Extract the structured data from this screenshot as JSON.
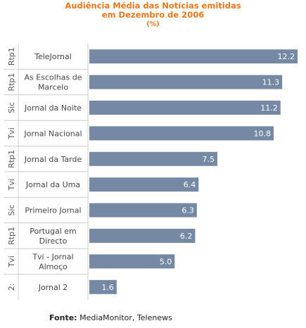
{
  "header": {
    "title_line1": "Audiência Média das Notícias emitidas",
    "title_line2": "em Dezembro de 2006",
    "unit": "(%)"
  },
  "footer": {
    "label": "Fonte:",
    "sources": "MediaMonitor, Telenews"
  },
  "colors": {
    "bar": "#7589a5",
    "title": "#e8761c",
    "grid": "#cccccc"
  },
  "chart_data": {
    "type": "bar",
    "orientation": "horizontal",
    "title": "Audiência Média das Notícias emitidas em Dezembro de 2006",
    "subtitle": "(%)",
    "categories": [
      {
        "channel": "Rtp1",
        "lines": [
          "TeleJornal"
        ]
      },
      {
        "channel": "Rtp1",
        "lines": [
          "As Escolhas de",
          "Marcelo"
        ]
      },
      {
        "channel": "Sic",
        "lines": [
          "Jornal da Noite"
        ]
      },
      {
        "channel": "Tvi",
        "lines": [
          "Jornal Nacional"
        ]
      },
      {
        "channel": "Rtp1",
        "lines": [
          "Jornal da Tarde"
        ]
      },
      {
        "channel": "Tvi",
        "lines": [
          "Jornal da Uma"
        ]
      },
      {
        "channel": "Sic",
        "lines": [
          "Primeiro Jornal"
        ]
      },
      {
        "channel": "Rtp1",
        "lines": [
          "Portugal em",
          "Directo"
        ]
      },
      {
        "channel": "Tvi",
        "lines": [
          "Tvi - Jornal",
          "Almoço"
        ]
      },
      {
        "channel": "2:",
        "lines": [
          "Jornal 2"
        ]
      }
    ],
    "values": [
      12.2,
      11.3,
      11.2,
      10.8,
      7.5,
      6.4,
      6.3,
      6.2,
      5.0,
      1.6
    ],
    "value_labels": [
      "12.2",
      "11.3",
      "11.2",
      "10.8",
      "7.5",
      "6.4",
      "6.3",
      "6.2",
      "5.0",
      "1.6"
    ],
    "xlim": [
      0,
      12.2
    ]
  }
}
